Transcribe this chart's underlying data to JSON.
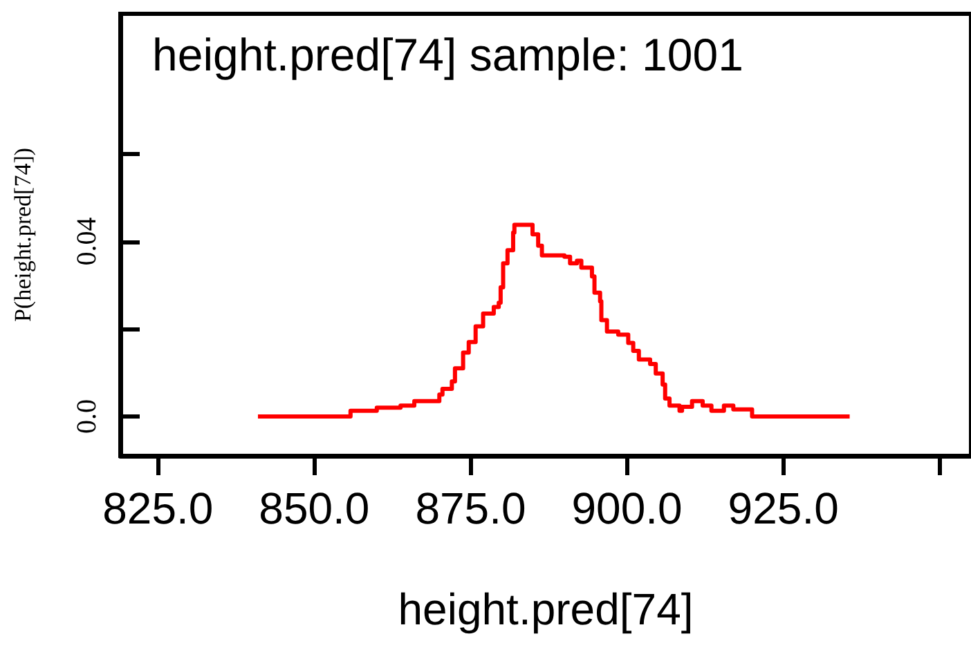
{
  "chart_data": {
    "type": "step",
    "title": "height.pred[74] sample: 1001",
    "xlabel": "height.pred[74]",
    "ylabel": "P(height.pred[74])",
    "x": [
      841,
      855.8,
      860,
      863.8,
      866,
      870,
      870.5,
      872,
      872.5,
      873.8,
      874.7,
      875.8,
      877,
      878.7,
      879.5,
      879.8,
      880.2,
      880.9,
      881.8,
      882,
      884.2,
      884.9,
      885.8,
      886.4,
      888.6,
      890,
      890.9,
      892,
      892.7,
      894.4,
      894.8,
      895.7,
      895.9,
      896.8,
      898.6,
      900.2,
      901,
      901.9,
      903.7,
      904.6,
      905.7,
      906.1,
      906.8,
      908.4,
      908.8,
      910.4,
      912.1,
      913.5,
      915.5,
      917,
      920,
      935.6
    ],
    "series": [
      {
        "color": "#ff0000",
        "values": [
          0,
          0.0013,
          0.002,
          0.0025,
          0.0035,
          0.005,
          0.0063,
          0.008,
          0.011,
          0.0146,
          0.017,
          0.0206,
          0.0235,
          0.025,
          0.026,
          0.0295,
          0.035,
          0.038,
          0.042,
          0.0438,
          0.0438,
          0.0416,
          0.039,
          0.0368,
          0.0368,
          0.0365,
          0.035,
          0.0356,
          0.034,
          0.032,
          0.0283,
          0.0263,
          0.022,
          0.0194,
          0.0187,
          0.0168,
          0.015,
          0.013,
          0.012,
          0.0098,
          0.0073,
          0.0041,
          0.0025,
          0.0013,
          0.0022,
          0.0035,
          0.0025,
          0.0013,
          0.0025,
          0.0016,
          0,
          0
        ]
      }
    ],
    "xlim": [
      819,
      955
    ],
    "xticks": [
      {
        "value": 825,
        "label": "825.0"
      },
      {
        "value": 850,
        "label": "850.0"
      },
      {
        "value": 875,
        "label": "875.0"
      },
      {
        "value": 900,
        "label": "900.0"
      },
      {
        "value": 925,
        "label": "925.0"
      },
      {
        "value": 950,
        "label": null
      }
    ],
    "ylim": [
      -0.009,
      0.092
    ],
    "yticks": [
      {
        "value": 0,
        "label": "0.0"
      },
      {
        "value": 0.02,
        "label": null
      },
      {
        "value": 0.04,
        "label": "0.04"
      },
      {
        "value": 0.06,
        "label": null
      }
    ],
    "grid": false,
    "marker": "none",
    "line_style": "solid"
  }
}
